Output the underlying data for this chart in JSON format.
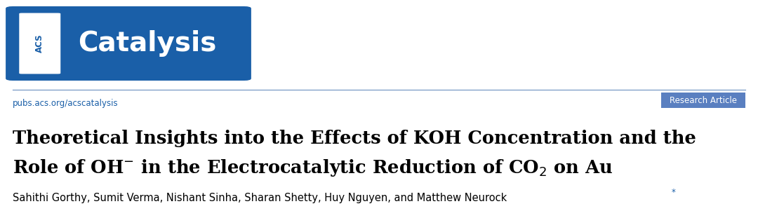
{
  "bg_color": "#ffffff",
  "logo_bg_color": "#1a5fa8",
  "logo_acs_bg": "#ffffff",
  "logo_acs_text": "ACS",
  "logo_acs_text_color": "#1a5fa8",
  "logo_journal_text": "Catalysis",
  "logo_journal_text_color": "#ffffff",
  "separator_color": "#6a8fc0",
  "url_text": "pubs.acs.org/acscatalysis",
  "url_color": "#1a5fa8",
  "url_fontsize": 8.5,
  "badge_text": "Research Article",
  "badge_bg_color": "#5a7fc0",
  "badge_text_color": "#ffffff",
  "badge_fontsize": 8.5,
  "title_line1": "Theoretical Insights into the Effects of KOH Concentration and the",
  "title_color": "#000000",
  "title_fontsize": 18.5,
  "authors_text": "Sahithi Gorthy, Sumit Verma, Nishant Sinha, Sharan Shetty, Huy Nguyen, and Matthew Neurock",
  "authors_star": "*",
  "authors_color": "#000000",
  "authors_star_color": "#1a5fa8",
  "authors_fontsize": 10.5,
  "fig_width": 10.8,
  "fig_height": 3.11,
  "dpi": 100
}
